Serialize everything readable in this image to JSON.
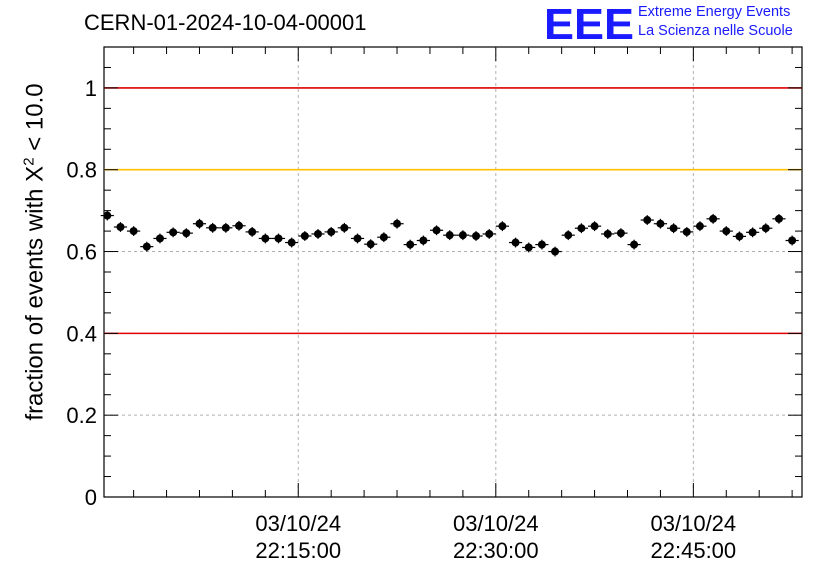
{
  "header": {
    "run_title": "CERN-01-2024-10-04-00001",
    "logo_text": "EEE",
    "logo_line1": "Extreme Energy Events",
    "logo_line2": "La Scienza nelle Scuole"
  },
  "colors": {
    "threshold_red": "#e00000",
    "threshold_orange": "#ffc000",
    "logo_blue": "#1a1aff",
    "markers": "#000000"
  },
  "chart_data": {
    "type": "scatter",
    "ylabel_prefix": "fraction of events with X",
    "ylabel_sup": "2",
    "ylabel_suffix": " < 10.0",
    "xlim": [
      "2024-10-03 22:00:15",
      "2024-10-03 22:53:15"
    ],
    "ylim": [
      0,
      1.1
    ],
    "grid": true,
    "y_ticks": [
      "0",
      "0.2",
      "0.4",
      "0.6",
      "0.8",
      "1"
    ],
    "x_tick_labels": [
      {
        "time": "2024-10-03 22:15:00",
        "line1": "03/10/24",
        "line2": "22:15:00"
      },
      {
        "time": "2024-10-03 22:30:00",
        "line1": "03/10/24",
        "line2": "22:30:00"
      },
      {
        "time": "2024-10-03 22:45:00",
        "line1": "03/10/24",
        "line2": "22:45:00"
      }
    ],
    "threshold_lines": [
      {
        "y": 1.0,
        "color": "#e00000"
      },
      {
        "y": 0.8,
        "color": "#ffc000"
      },
      {
        "y": 0.4,
        "color": "#e00000"
      }
    ],
    "x": [
      "22:00:30",
      "22:01:30",
      "22:02:30",
      "22:03:30",
      "22:04:30",
      "22:05:30",
      "22:06:30",
      "22:07:30",
      "22:08:30",
      "22:09:30",
      "22:10:30",
      "22:11:30",
      "22:12:30",
      "22:13:30",
      "22:14:30",
      "22:15:30",
      "22:16:30",
      "22:17:30",
      "22:18:30",
      "22:19:30",
      "22:20:30",
      "22:21:30",
      "22:22:30",
      "22:23:30",
      "22:24:30",
      "22:25:30",
      "22:26:30",
      "22:27:30",
      "22:28:30",
      "22:29:30",
      "22:30:30",
      "22:31:30",
      "22:32:30",
      "22:33:30",
      "22:34:30",
      "22:35:30",
      "22:36:30",
      "22:37:30",
      "22:38:30",
      "22:39:30",
      "22:40:30",
      "22:41:30",
      "22:42:30",
      "22:43:30",
      "22:44:30",
      "22:45:30",
      "22:46:30",
      "22:47:30",
      "22:48:30",
      "22:49:30",
      "22:50:30",
      "22:51:30",
      "22:52:30"
    ],
    "y": [
      0.688,
      0.66,
      0.65,
      0.612,
      0.632,
      0.647,
      0.645,
      0.668,
      0.658,
      0.658,
      0.663,
      0.648,
      0.632,
      0.632,
      0.622,
      0.638,
      0.643,
      0.648,
      0.658,
      0.632,
      0.618,
      0.635,
      0.668,
      0.617,
      0.627,
      0.652,
      0.64,
      0.64,
      0.638,
      0.643,
      0.662,
      0.622,
      0.61,
      0.617,
      0.6,
      0.64,
      0.657,
      0.662,
      0.643,
      0.645,
      0.617,
      0.677,
      0.668,
      0.657,
      0.648,
      0.662,
      0.68,
      0.65,
      0.637,
      0.647,
      0.657,
      0.68,
      0.627
    ],
    "y_err": 0.012,
    "x_err_minutes": 0.5
  }
}
